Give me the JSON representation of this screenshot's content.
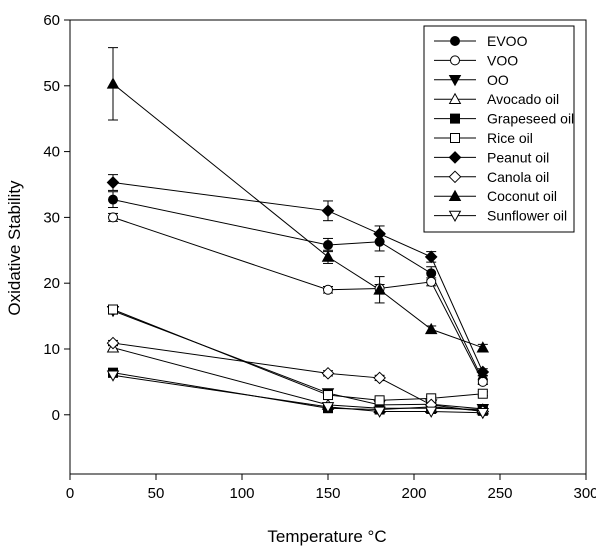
{
  "chart_data": {
    "type": "line",
    "title": "",
    "xlabel": "Temperature °C",
    "ylabel": "Oxidative Stability",
    "xlim": [
      0,
      300
    ],
    "ylim": [
      -9,
      60
    ],
    "xticks": [
      0,
      50,
      100,
      150,
      200,
      250,
      300
    ],
    "yticks": [
      0,
      10,
      20,
      30,
      40,
      50,
      60
    ],
    "grid": false,
    "legend_position": "top-right",
    "series": [
      {
        "name": "EVOO",
        "marker": "circle",
        "fill": "filled",
        "x": [
          25,
          150,
          180,
          210,
          240
        ],
        "y": [
          32.7,
          25.8,
          26.3,
          21.5,
          5.3
        ],
        "err": [
          1.2,
          1.0,
          1.4,
          1.0,
          0.6
        ]
      },
      {
        "name": "VOO",
        "marker": "circle",
        "fill": "open",
        "x": [
          25,
          150,
          180,
          210,
          240
        ],
        "y": [
          30.0,
          19.0,
          19.2,
          20.2,
          5.0
        ],
        "err": [
          0.6,
          0.5,
          0.6,
          0.6,
          0.4
        ]
      },
      {
        "name": "OO",
        "marker": "triangle-down",
        "fill": "filled",
        "x": [
          25,
          150,
          180,
          210,
          240
        ],
        "y": [
          15.8,
          3.3,
          1.5,
          1.6,
          0.9
        ],
        "err": [
          0.5,
          0.3,
          0.3,
          0.3,
          0.3
        ]
      },
      {
        "name": "Avocado oil",
        "marker": "triangle-up",
        "fill": "open",
        "x": [
          25,
          150,
          180,
          210,
          240
        ],
        "y": [
          10.2,
          1.5,
          1.0,
          1.0,
          0.8
        ],
        "err": [
          0.4,
          0.3,
          0.3,
          0.3,
          0.3
        ]
      },
      {
        "name": "Grapeseed oil",
        "marker": "square",
        "fill": "filled",
        "x": [
          25,
          150,
          180,
          210,
          240
        ],
        "y": [
          6.4,
          1.0,
          0.8,
          1.2,
          0.6
        ],
        "err": [
          0.3,
          0.3,
          0.3,
          0.3,
          0.3
        ]
      },
      {
        "name": "Rice oil",
        "marker": "square",
        "fill": "open",
        "x": [
          25,
          150,
          180,
          210,
          240
        ],
        "y": [
          16.0,
          3.0,
          2.2,
          2.5,
          3.2
        ],
        "err": [
          0.5,
          0.3,
          0.3,
          0.3,
          0.3
        ]
      },
      {
        "name": "Peanut oil",
        "marker": "diamond",
        "fill": "filled",
        "x": [
          25,
          150,
          180,
          210,
          240
        ],
        "y": [
          35.3,
          31.0,
          27.5,
          24.0,
          6.5
        ],
        "err": [
          1.2,
          1.5,
          1.2,
          0.8,
          0.5
        ]
      },
      {
        "name": "Canola oil",
        "marker": "diamond",
        "fill": "open",
        "x": [
          25,
          150,
          180,
          210,
          240
        ],
        "y": [
          10.9,
          6.3,
          5.6,
          1.5,
          0.5
        ],
        "err": [
          0.4,
          0.4,
          0.4,
          0.3,
          0.3
        ]
      },
      {
        "name": "Coconut oil",
        "marker": "triangle-up",
        "fill": "filled",
        "x": [
          25,
          150,
          180,
          210,
          240
        ],
        "y": [
          50.3,
          24.0,
          19.0,
          13.0,
          10.2
        ],
        "err": [
          5.5,
          1.0,
          2.0,
          0.5,
          0.5
        ]
      },
      {
        "name": "Sunflower oil",
        "marker": "triangle-down",
        "fill": "open",
        "x": [
          25,
          150,
          180,
          210,
          240
        ],
        "y": [
          6.0,
          1.2,
          0.5,
          0.5,
          0.3
        ],
        "err": [
          0.3,
          0.3,
          0.3,
          0.3,
          0.3
        ]
      }
    ]
  }
}
